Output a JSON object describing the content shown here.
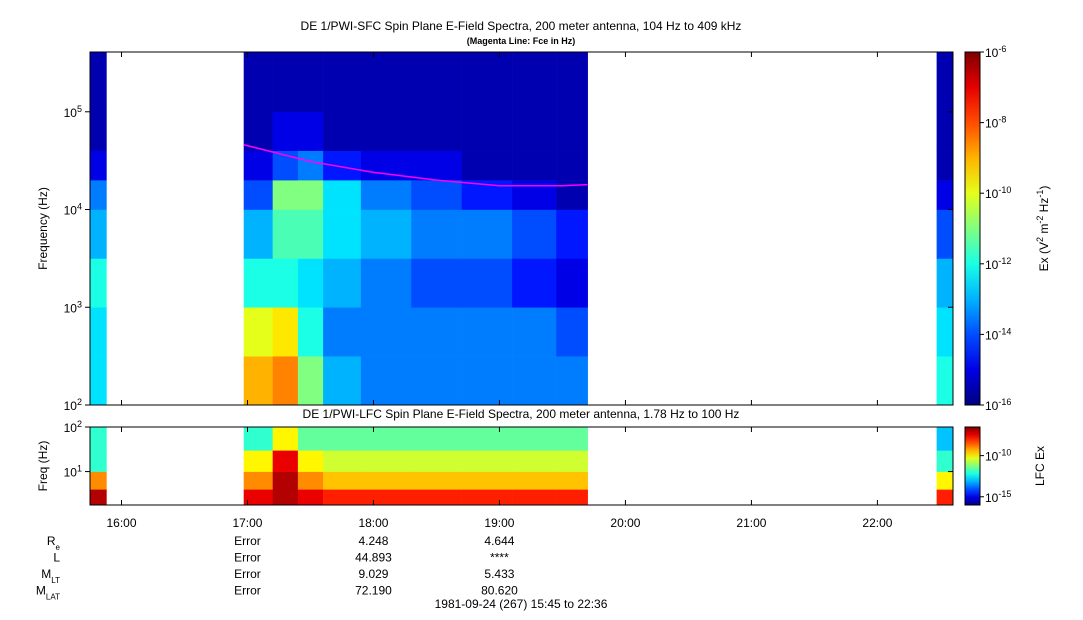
{
  "chart_data": {
    "type": "spectrogram",
    "title": "DE 1/PWI-SFC  Spin Plane E-Field Spectra, 200 meter antenna, 104 Hz to 409 kHz",
    "subtitle": "(Magenta Line: Fce in Hz)",
    "xlim": [
      15.75,
      22.6
    ],
    "xticks": [
      {
        "value": 16,
        "label": "16:00"
      },
      {
        "value": 17,
        "label": "17:00"
      },
      {
        "value": 18,
        "label": "18:00"
      },
      {
        "value": 19,
        "label": "19:00"
      },
      {
        "value": 20,
        "label": "20:00"
      },
      {
        "value": 21,
        "label": "21:00"
      },
      {
        "value": 22,
        "label": "22:00"
      }
    ],
    "time_edges": [
      15.75,
      15.88,
      16.97,
      17.2,
      17.4,
      17.6,
      17.9,
      18.3,
      18.7,
      19.1,
      19.45,
      19.7,
      22.47,
      22.6
    ],
    "colormap": "jet",
    "panels": [
      {
        "ylabel": "Frequency (Hz)",
        "yscale": "log",
        "ylim": [
          100,
          409000
        ],
        "yticks": [
          {
            "value": 100,
            "label": "10",
            "exponent": "2"
          },
          {
            "value": 1000,
            "label": "10",
            "exponent": "3"
          },
          {
            "value": 10000,
            "label": "10",
            "exponent": "4"
          },
          {
            "value": 100000,
            "label": "10",
            "exponent": "5"
          }
        ],
        "freq_edges": [
          100,
          316,
          1000,
          3160,
          10000,
          20000,
          40000,
          100000,
          409000
        ],
        "zlim": [
          1e-16,
          1e-06
        ],
        "zticks": [
          {
            "value": 1e-16,
            "label": "10",
            "exponent": "-16"
          },
          {
            "value": 1e-14,
            "label": "10",
            "exponent": "-14"
          },
          {
            "value": 1e-12,
            "label": "10",
            "exponent": "-12"
          },
          {
            "value": 1e-10,
            "label": "10",
            "exponent": "-10"
          },
          {
            "value": 1e-08,
            "label": "10",
            "exponent": "-8"
          },
          {
            "value": 1e-06,
            "label": "10",
            "exponent": "-6"
          }
        ],
        "zlabel": [
          "Ex (V",
          "2",
          " m",
          "-2",
          " Hz",
          "-1",
          ")"
        ],
        "z": [
          [
            3e-13,
            3e-13,
            1e-12,
            1e-13,
            3e-14,
            1e-15,
            3e-16,
            3e-16
          ],
          null,
          [
            1e-09,
            1e-10,
            1e-12,
            1e-13,
            1e-14,
            1e-15,
            3e-16,
            3e-16
          ],
          [
            3e-09,
            3e-10,
            1e-12,
            3e-12,
            1e-11,
            1e-14,
            1e-15,
            3e-16
          ],
          [
            1e-11,
            1e-12,
            3e-13,
            3e-12,
            1e-11,
            3e-14,
            1e-15,
            3e-16
          ],
          [
            1e-13,
            3e-14,
            1e-13,
            3e-13,
            3e-13,
            3e-15,
            3e-16,
            3e-16
          ],
          [
            3e-14,
            3e-14,
            3e-14,
            1e-13,
            3e-14,
            1e-15,
            3e-16,
            3e-16
          ],
          [
            3e-14,
            3e-14,
            1e-14,
            3e-14,
            1e-14,
            1e-15,
            3e-16,
            3e-16
          ],
          [
            3e-14,
            3e-14,
            1e-14,
            3e-14,
            3e-15,
            3e-16,
            3e-16,
            3e-16
          ],
          [
            3e-14,
            3e-14,
            3e-15,
            1e-14,
            1e-15,
            3e-16,
            3e-16,
            3e-16
          ],
          [
            3e-14,
            1e-14,
            1e-15,
            3e-15,
            3e-16,
            3e-16,
            3e-16,
            3e-16
          ],
          null,
          [
            1e-12,
            3e-13,
            1e-13,
            1e-14,
            1e-15,
            3e-16,
            3e-16,
            3e-16
          ]
        ],
        "overlay": {
          "color": "#ff00ff",
          "x": [
            16.97,
            17.5,
            18,
            18.5,
            19,
            19.5,
            19.7
          ],
          "values": [
            46000,
            31000,
            24000,
            20000,
            17500,
            17500,
            18000
          ]
        }
      },
      {
        "title": "DE 1/PWI-LFC  Spin Plane E-Field Spectra, 200 meter antenna, 1.78 Hz to 100 Hz",
        "ylabel": "Freq (Hz)",
        "yscale": "log",
        "ylim": [
          1.78,
          100
        ],
        "yticks": [
          {
            "value": 10,
            "label": "10",
            "exponent": "1"
          },
          {
            "value": 100,
            "label": "10",
            "exponent": "2"
          }
        ],
        "freq_edges": [
          1.78,
          4,
          10,
          30,
          100
        ],
        "zlim": [
          1e-16,
          3e-07
        ],
        "zticks": [
          {
            "value": 1e-15,
            "label": "10",
            "exponent": "-15"
          },
          {
            "value": 1e-10,
            "label": "10",
            "exponent": "-10"
          }
        ],
        "zlabel": [
          "LFC Ex"
        ],
        "z": [
          [
            1e-07,
            1e-09,
            1e-12,
            1e-12
          ],
          null,
          [
            3e-08,
            1e-09,
            1e-10,
            1e-12
          ],
          [
            1e-07,
            1e-07,
            3e-08,
            1e-10
          ],
          [
            3e-08,
            1e-09,
            1e-10,
            3e-12
          ],
          [
            1e-08,
            3e-10,
            3e-11,
            3e-12
          ],
          [
            1e-08,
            3e-10,
            3e-11,
            3e-12
          ],
          [
            1e-08,
            3e-10,
            3e-11,
            3e-12
          ],
          [
            1e-08,
            3e-10,
            3e-11,
            3e-12
          ],
          [
            1e-08,
            3e-10,
            3e-11,
            3e-12
          ],
          [
            1e-08,
            3e-10,
            3e-11,
            3e-12
          ],
          null,
          [
            1e-08,
            1e-10,
            1e-12,
            1e-13
          ]
        ]
      }
    ]
  },
  "ephemeris": {
    "rows": [
      {
        "label": "R",
        "sub": "e",
        "values": [
          "Error",
          "4.248",
          "4.644"
        ]
      },
      {
        "label": "L",
        "values": [
          "Error",
          "44.893",
          "****"
        ]
      },
      {
        "label": "M",
        "sub": "LT",
        "values": [
          "Error",
          "9.029",
          "5.433"
        ]
      },
      {
        "label": "M",
        "sub": "LAT",
        "values": [
          "Error",
          "72.190",
          "80.620"
        ]
      }
    ]
  },
  "footer": "1981-09-24 (267) 15:45 to 22:36"
}
